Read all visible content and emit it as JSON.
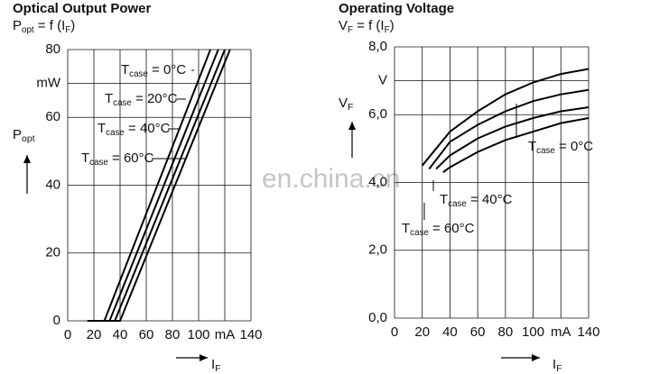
{
  "chart_data": [
    {
      "type": "line",
      "title": "Optical Output Power",
      "subtitle": [
        "P",
        "opt",
        " = f (I",
        "F",
        ")"
      ],
      "ylabel": [
        "P",
        "opt"
      ],
      "xlabel": [
        "I",
        "F"
      ],
      "xlim": [
        0,
        140
      ],
      "xticks": [
        0,
        20,
        40,
        60,
        80,
        100,
        {
          "value": 120,
          "label": "mA"
        },
        140
      ],
      "ylim": [
        0,
        80
      ],
      "yticks": [
        0,
        20,
        40,
        60,
        {
          "value": 70,
          "label": "mW"
        },
        80
      ],
      "grid": true,
      "series": [
        {
          "label": [
            "T",
            "case",
            " = 0°C"
          ],
          "color": "#000",
          "x": [
            15,
            28,
            109
          ],
          "values": [
            0,
            0,
            80
          ]
        },
        {
          "label": [
            "T",
            "case",
            " = 20°C"
          ],
          "color": "#000",
          "x": [
            18,
            32,
            115
          ],
          "values": [
            0,
            0,
            80
          ]
        },
        {
          "label": [
            "T",
            "case",
            " = 40°C"
          ],
          "color": "#000",
          "x": [
            22,
            36,
            120
          ],
          "values": [
            0,
            0,
            80
          ]
        },
        {
          "label": [
            "T",
            "case",
            " = 60°C"
          ],
          "color": "#000",
          "x": [
            25,
            40,
            124
          ],
          "values": [
            0,
            0,
            80
          ]
        }
      ]
    },
    {
      "type": "line",
      "title": "Operating Voltage",
      "subtitle": [
        "V",
        "F",
        " = f (I",
        "F",
        ")"
      ],
      "ylabel": [
        "V",
        "F"
      ],
      "xlabel": [
        "I",
        "F"
      ],
      "xlim": [
        0,
        140
      ],
      "xticks": [
        0,
        20,
        40,
        60,
        80,
        100,
        {
          "value": 120,
          "label": "mA"
        },
        140
      ],
      "ylim": [
        0,
        8
      ],
      "yticks": [
        {
          "value": 0,
          "label": "0,0"
        },
        {
          "value": 2,
          "label": "2,0"
        },
        {
          "value": 4,
          "label": "4,0"
        },
        {
          "value": 6,
          "label": "6,0"
        },
        {
          "value": 7,
          "label": "V"
        },
        {
          "value": 8,
          "label": "8,0"
        }
      ],
      "grid": true,
      "series": [
        {
          "label": [
            "T",
            "case",
            " = 0°C"
          ],
          "color": "#000",
          "x": [
            20,
            40,
            60,
            80,
            100,
            120,
            140
          ],
          "values": [
            4.5,
            5.5,
            6.1,
            6.6,
            6.95,
            7.2,
            7.35
          ]
        },
        {
          "color": "#000",
          "x": [
            25,
            40,
            60,
            80,
            100,
            120,
            140
          ],
          "values": [
            4.4,
            5.2,
            5.7,
            6.1,
            6.4,
            6.6,
            6.73
          ]
        },
        {
          "label": [
            "T",
            "case",
            " = 40°C"
          ],
          "color": "#000",
          "x": [
            30,
            40,
            60,
            80,
            100,
            120,
            140
          ],
          "values": [
            4.4,
            4.8,
            5.3,
            5.65,
            5.9,
            6.1,
            6.22
          ]
        },
        {
          "label": [
            "T",
            "case",
            " = 60°C"
          ],
          "color": "#000",
          "x": [
            35,
            40,
            60,
            80,
            100,
            120,
            140
          ],
          "values": [
            4.3,
            4.45,
            4.9,
            5.25,
            5.5,
            5.75,
            5.9
          ]
        }
      ]
    }
  ],
  "watermark": "en.china.cn"
}
